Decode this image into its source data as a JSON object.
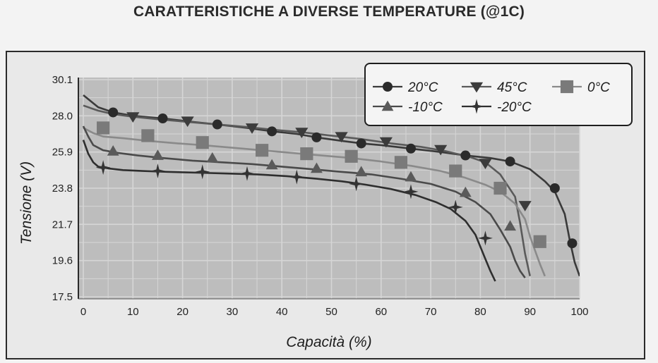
{
  "chart_data": {
    "type": "line",
    "title": "CARATTERISTICHE A DIVERSE TEMPERATURE (@1C)",
    "xlabel": "Capacità (%)",
    "ylabel": "Tensione (V)",
    "xlim": [
      0,
      100
    ],
    "ylim": [
      17.5,
      30.1
    ],
    "x_ticks": [
      "0",
      "10",
      "20",
      "30",
      "40",
      "50",
      "60",
      "70",
      "80",
      "90",
      "100"
    ],
    "y_ticks": [
      "30.1",
      "28.0",
      "25.9",
      "23.8",
      "21.7",
      "19.6",
      "17.5"
    ],
    "grid": true,
    "legend_position": "top-right",
    "series": [
      {
        "name": "20°C",
        "marker": "circle",
        "color": "#2b2b2b",
        "line_color": "#3a3a3a",
        "x": [
          0,
          3,
          6,
          10,
          16,
          22,
          27,
          33,
          38,
          43,
          47,
          52,
          56,
          60,
          66,
          72,
          77,
          82,
          86,
          90,
          93,
          95,
          97,
          98,
          99,
          100
        ],
        "y": [
          29.2,
          28.5,
          28.2,
          28.0,
          27.85,
          27.65,
          27.5,
          27.3,
          27.1,
          26.95,
          26.75,
          26.55,
          26.4,
          26.3,
          26.1,
          25.9,
          25.7,
          25.55,
          25.35,
          24.9,
          24.2,
          23.6,
          22.3,
          20.8,
          19.5,
          18.7
        ],
        "marker_x": [
          6,
          16,
          27,
          38,
          47,
          56,
          66,
          77,
          86,
          95,
          98.5
        ],
        "marker_y": [
          28.2,
          27.85,
          27.5,
          27.1,
          26.75,
          26.4,
          26.1,
          25.7,
          25.35,
          23.8,
          20.6
        ]
      },
      {
        "name": "45°C",
        "marker": "triangle-down",
        "color": "#3c3c3c",
        "line_color": "#5a5a5a",
        "x": [
          0,
          3,
          6,
          10,
          15,
          21,
          27,
          33,
          38,
          44,
          50,
          56,
          62,
          68,
          73,
          78,
          81,
          84,
          87,
          88,
          89,
          90
        ],
        "y": [
          28.6,
          28.3,
          28.1,
          27.95,
          27.8,
          27.65,
          27.5,
          27.35,
          27.2,
          27.05,
          26.85,
          26.65,
          26.4,
          26.2,
          25.95,
          25.6,
          25.3,
          24.6,
          23.3,
          21.8,
          20.0,
          18.7
        ],
        "marker_x": [
          10,
          21,
          34,
          44,
          52,
          61,
          72,
          81,
          89
        ],
        "marker_y": [
          27.95,
          27.7,
          27.3,
          27.05,
          26.8,
          26.5,
          26.05,
          25.25,
          22.8
        ]
      },
      {
        "name": "0°C",
        "marker": "square",
        "color": "#7a7a7a",
        "line_color": "#8a8a8a",
        "x": [
          0,
          2,
          4,
          8,
          13,
          19,
          24,
          30,
          36,
          42,
          48,
          54,
          60,
          66,
          72,
          77,
          81,
          84,
          87,
          89,
          90,
          91,
          92,
          93
        ],
        "y": [
          27.3,
          27.0,
          26.8,
          26.7,
          26.55,
          26.4,
          26.3,
          26.15,
          26.0,
          25.85,
          25.7,
          25.55,
          25.35,
          25.1,
          24.8,
          24.4,
          24.0,
          23.6,
          22.9,
          22.0,
          21.0,
          20.2,
          19.4,
          18.7
        ],
        "marker_x": [
          4,
          13,
          24,
          36,
          45,
          54,
          64,
          75,
          84,
          92
        ],
        "marker_y": [
          27.3,
          26.85,
          26.45,
          26.0,
          25.8,
          25.65,
          25.3,
          24.8,
          23.8,
          20.7
        ]
      },
      {
        "name": "-10°C",
        "marker": "triangle-up",
        "color": "#5a5a5a",
        "line_color": "#4a4a4a",
        "x": [
          0,
          1,
          2,
          4,
          7,
          11,
          16,
          22,
          28,
          34,
          40,
          46,
          52,
          58,
          64,
          70,
          75,
          79,
          82,
          84,
          86,
          87,
          88,
          89
        ],
        "y": [
          27.4,
          26.8,
          26.3,
          26.0,
          25.85,
          25.7,
          25.55,
          25.4,
          25.3,
          25.2,
          25.05,
          24.9,
          24.75,
          24.6,
          24.35,
          24.05,
          23.6,
          23.0,
          22.3,
          21.4,
          20.4,
          19.6,
          19.0,
          18.6
        ],
        "marker_x": [
          6,
          15,
          26,
          38,
          47,
          56,
          66,
          77,
          86
        ],
        "marker_y": [
          25.95,
          25.7,
          25.55,
          25.15,
          24.95,
          24.75,
          24.45,
          23.55,
          21.6
        ]
      },
      {
        "name": "-20°C",
        "marker": "star",
        "color": "#333333",
        "line_color": "#2e2e2e",
        "x": [
          0,
          1,
          2,
          3,
          5,
          8,
          12,
          17,
          23,
          29,
          35,
          41,
          47,
          52,
          57,
          62,
          67,
          71,
          74,
          77,
          79,
          80,
          81,
          82,
          83
        ],
        "y": [
          26.6,
          25.8,
          25.3,
          25.05,
          24.95,
          24.85,
          24.8,
          24.75,
          24.7,
          24.65,
          24.6,
          24.5,
          24.35,
          24.2,
          24.0,
          23.75,
          23.4,
          23.0,
          22.6,
          21.9,
          21.1,
          20.4,
          19.7,
          19.0,
          18.4
        ],
        "marker_x": [
          4,
          15,
          24,
          33,
          43,
          55,
          66,
          75,
          81
        ],
        "marker_y": [
          25.0,
          24.8,
          24.75,
          24.65,
          24.45,
          24.05,
          23.6,
          22.7,
          20.9
        ]
      }
    ]
  }
}
